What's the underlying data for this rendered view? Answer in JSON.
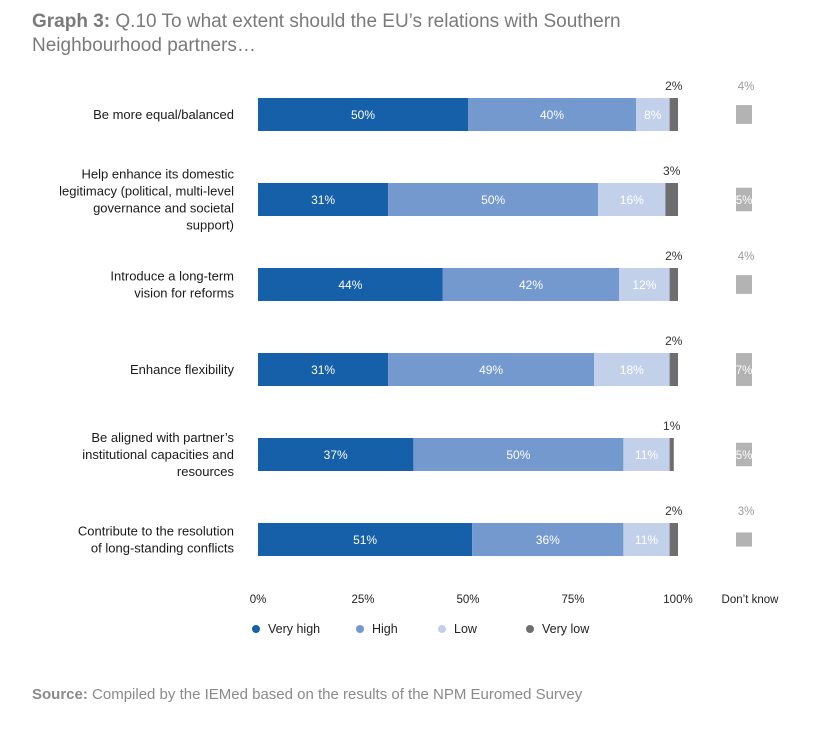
{
  "title": {
    "lead": "Graph 3:",
    "text": " Q.10 To what extent should the EU’s relations with Southern Neighbourhood partners…"
  },
  "source": {
    "lead": "Source:",
    "text": " Compiled by the IEMed based on the results of the NPM Euromed Survey"
  },
  "colors": {
    "very_high": "#1560a8",
    "high": "#7399cf",
    "low": "#c3d0ea",
    "very_low": "#6e6e70",
    "dont_know": "#b3b3b3"
  },
  "chart_data": {
    "type": "bar",
    "orientation": "horizontal",
    "stacked": true,
    "categories": [
      [
        "Be more equal/balanced"
      ],
      [
        "Help enhance its domestic",
        "legitimacy (political, multi-level",
        "governance and societal",
        "support)"
      ],
      [
        "Introduce a long-term",
        "vision for reforms"
      ],
      [
        "Enhance flexibility"
      ],
      [
        "Be aligned with partner’s",
        "institutional capacities and",
        "resources"
      ],
      [
        "Contribute to the resolution",
        "of long-standing conflicts"
      ]
    ],
    "series": [
      {
        "name": "Very high",
        "key": "very_high",
        "values": [
          50,
          31,
          44,
          31,
          37,
          51
        ],
        "labels": [
          "50%",
          "31%",
          "44%",
          "31%",
          "37%",
          "51%"
        ]
      },
      {
        "name": "High",
        "key": "high",
        "values": [
          40,
          50,
          42,
          49,
          50,
          36
        ],
        "labels": [
          "40%",
          "50%",
          "42%",
          "49%",
          "50%",
          "36%"
        ]
      },
      {
        "name": "Low",
        "key": "low",
        "values": [
          8,
          16,
          12,
          18,
          11,
          11
        ],
        "labels": [
          "8%",
          "16%",
          "12%",
          "18%",
          "11%",
          "11%"
        ]
      },
      {
        "name": "Very low",
        "key": "very_low",
        "values": [
          2,
          3,
          2,
          2,
          1,
          2
        ],
        "labels": [
          "2%",
          "3%",
          "2%",
          "2%",
          "1%",
          "2%"
        ]
      }
    ],
    "dont_know": {
      "name": "Don’t know",
      "values": [
        4,
        5,
        4,
        7,
        5,
        3
      ],
      "labels": [
        "4%",
        "5%",
        "4%",
        "7%",
        "5%",
        "3%"
      ]
    },
    "x_ticks": [
      "0%",
      "25%",
      "50%",
      "75%",
      "100%"
    ],
    "xlim": [
      0,
      100
    ],
    "legend_position": "bottom"
  }
}
